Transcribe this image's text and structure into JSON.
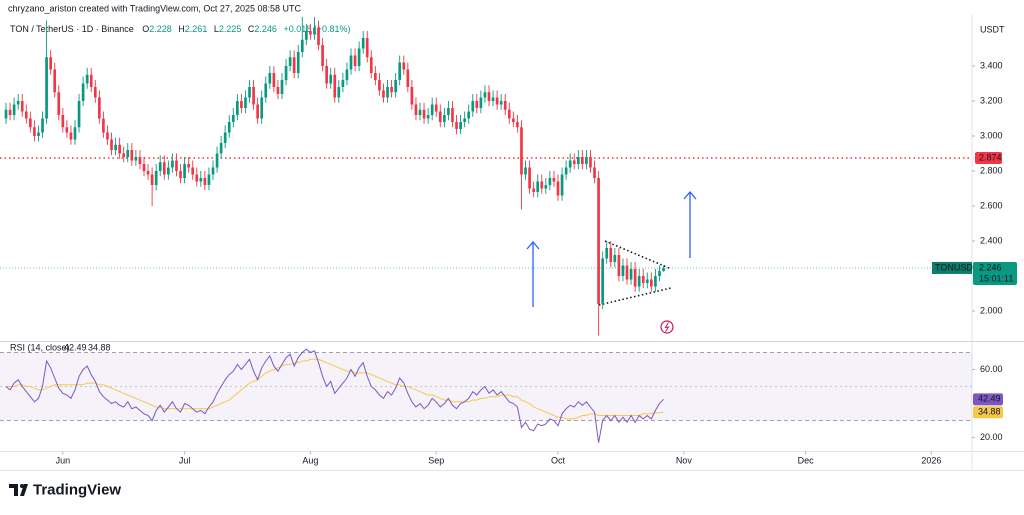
{
  "header": {
    "credit": "chryzano_ariston created with TradingView.com, Oct 27, 2025 08:58 UTC"
  },
  "footer": {
    "logo": "TradingView"
  },
  "chart_data": [
    {
      "type": "candlestick",
      "title": "TON / TetherUS · 1D · Binance",
      "ohlc_keys": [
        "O",
        "H",
        "L",
        "C"
      ],
      "change": "+0.018 (+0.81%)",
      "unit": "USDT",
      "symbol_tag": "TONUSDT",
      "countdown": "15:01:11",
      "up_color": "#089981",
      "down_color": "#f23645",
      "level": {
        "value": 2.874,
        "color": "#f23645"
      },
      "xlim": [
        0,
        238
      ],
      "xticks": [
        {
          "value": 14,
          "label": "Jun"
        },
        {
          "value": 44,
          "label": "Jul"
        },
        {
          "value": 75,
          "label": "Aug"
        },
        {
          "value": 106,
          "label": "Sep"
        },
        {
          "value": 136,
          "label": "Oct"
        },
        {
          "value": 167,
          "label": "Nov"
        },
        {
          "value": 197,
          "label": "Dec"
        },
        {
          "value": 228,
          "label": "2026"
        }
      ],
      "ylim": [
        1.83,
        3.69
      ],
      "yticks": [
        {
          "value": 2.0,
          "label": "2.000"
        },
        {
          "value": 2.4,
          "label": "2.400"
        },
        {
          "value": 2.6,
          "label": "2.600"
        },
        {
          "value": 2.8,
          "label": "2.800"
        },
        {
          "value": 3.0,
          "label": "3.000"
        },
        {
          "value": 3.2,
          "label": "3.200"
        },
        {
          "value": 3.4,
          "label": "3.400"
        }
      ],
      "open": [
        3.1,
        3.15,
        3.12,
        3.18,
        3.2,
        3.14,
        3.1,
        3.05,
        3.0,
        3.02,
        3.1,
        3.45,
        3.38,
        3.25,
        3.12,
        3.05,
        3.02,
        2.98,
        3.05,
        3.2,
        3.3,
        3.35,
        3.28,
        3.22,
        3.1,
        3.02,
        2.98,
        2.92,
        2.95,
        2.9,
        2.88,
        2.92,
        2.86,
        2.88,
        2.84,
        2.8,
        2.78,
        2.72,
        2.8,
        2.85,
        2.78,
        2.82,
        2.86,
        2.8,
        2.76,
        2.84,
        2.82,
        2.78,
        2.74,
        2.76,
        2.72,
        2.78,
        2.82,
        2.9,
        2.96,
        3.02,
        3.08,
        3.12,
        3.2,
        3.16,
        3.22,
        3.28,
        3.18,
        3.1,
        3.22,
        3.3,
        3.36,
        3.28,
        3.24,
        3.32,
        3.4,
        3.45,
        3.36,
        3.48,
        3.55,
        3.6,
        3.58,
        3.62,
        3.52,
        3.4,
        3.3,
        3.35,
        3.22,
        3.28,
        3.32,
        3.38,
        3.46,
        3.4,
        3.5,
        3.56,
        3.45,
        3.36,
        3.32,
        3.26,
        3.22,
        3.28,
        3.25,
        3.32,
        3.42,
        3.38,
        3.28,
        3.18,
        3.12,
        3.15,
        3.1,
        3.12,
        3.18,
        3.14,
        3.08,
        3.12,
        3.16,
        3.08,
        3.04,
        3.08,
        3.1,
        3.14,
        3.2,
        3.16,
        3.22,
        3.25,
        3.2,
        3.22,
        3.18,
        3.2,
        3.15,
        3.1,
        3.08,
        3.05,
        2.78,
        2.82,
        2.7,
        2.68,
        2.74,
        2.7,
        2.72,
        2.76,
        2.74,
        2.66,
        2.78,
        2.82,
        2.86,
        2.84,
        2.88,
        2.84,
        2.88,
        2.82,
        2.76,
        2.04,
        2.3,
        2.36,
        2.28,
        2.32,
        2.2,
        2.26,
        2.18,
        2.24,
        2.14,
        2.2,
        2.16,
        2.18,
        2.14,
        2.2,
        2.228
      ],
      "high": [
        3.19,
        3.19,
        3.22,
        3.24,
        3.24,
        3.18,
        3.14,
        3.09,
        3.06,
        3.14,
        3.66,
        3.49,
        3.42,
        3.29,
        3.16,
        3.09,
        3.06,
        3.09,
        3.24,
        3.34,
        3.39,
        3.39,
        3.32,
        3.26,
        3.14,
        3.06,
        3.02,
        2.99,
        2.99,
        2.94,
        2.96,
        2.96,
        2.92,
        2.92,
        2.88,
        2.84,
        2.82,
        2.84,
        2.89,
        2.89,
        2.86,
        2.9,
        2.9,
        2.84,
        2.88,
        2.88,
        2.86,
        2.82,
        2.8,
        2.8,
        2.82,
        2.86,
        2.94,
        3.0,
        3.06,
        3.12,
        3.16,
        3.24,
        3.24,
        3.26,
        3.32,
        3.32,
        3.22,
        3.26,
        3.34,
        3.4,
        3.4,
        3.32,
        3.36,
        3.44,
        3.49,
        3.49,
        3.52,
        3.68,
        3.64,
        3.64,
        3.68,
        3.66,
        3.56,
        3.44,
        3.39,
        3.39,
        3.32,
        3.36,
        3.42,
        3.5,
        3.5,
        3.54,
        3.6,
        3.6,
        3.49,
        3.4,
        3.36,
        3.3,
        3.32,
        3.32,
        3.36,
        3.46,
        3.46,
        3.42,
        3.32,
        3.22,
        3.19,
        3.19,
        3.16,
        3.22,
        3.22,
        3.18,
        3.16,
        3.2,
        3.2,
        3.12,
        3.12,
        3.14,
        3.18,
        3.24,
        3.24,
        3.26,
        3.29,
        3.29,
        3.26,
        3.26,
        3.24,
        3.24,
        3.19,
        3.14,
        3.12,
        3.09,
        2.86,
        2.86,
        2.74,
        2.78,
        2.78,
        2.76,
        2.8,
        2.8,
        2.78,
        2.82,
        2.86,
        2.9,
        2.9,
        2.92,
        2.92,
        2.92,
        2.92,
        2.86,
        2.8,
        2.34,
        2.4,
        2.4,
        2.36,
        2.36,
        2.3,
        2.3,
        2.28,
        2.28,
        2.24,
        2.24,
        2.22,
        2.22,
        2.24,
        2.26,
        2.261
      ],
      "low": [
        3.07,
        3.09,
        3.09,
        3.15,
        3.11,
        3.07,
        3.02,
        2.97,
        2.97,
        2.99,
        3.07,
        3.35,
        3.22,
        3.09,
        3.02,
        2.99,
        2.95,
        2.95,
        3.02,
        3.17,
        3.27,
        3.25,
        3.19,
        3.07,
        2.99,
        2.95,
        2.89,
        2.89,
        2.87,
        2.85,
        2.85,
        2.83,
        2.83,
        2.81,
        2.77,
        2.75,
        2.6,
        2.69,
        2.77,
        2.75,
        2.75,
        2.79,
        2.77,
        2.73,
        2.73,
        2.79,
        2.75,
        2.71,
        2.71,
        2.69,
        2.69,
        2.75,
        2.79,
        2.87,
        2.93,
        2.99,
        3.05,
        3.09,
        3.13,
        3.13,
        3.19,
        3.15,
        3.07,
        3.07,
        3.19,
        3.27,
        3.25,
        3.21,
        3.21,
        3.29,
        3.37,
        3.33,
        3.33,
        3.45,
        3.52,
        3.55,
        3.55,
        3.49,
        3.37,
        3.27,
        3.27,
        3.19,
        3.19,
        3.25,
        3.29,
        3.35,
        3.37,
        3.37,
        3.47,
        3.42,
        3.33,
        3.29,
        3.23,
        3.19,
        3.19,
        3.22,
        3.22,
        3.29,
        3.35,
        3.25,
        3.15,
        3.09,
        3.09,
        3.07,
        3.07,
        3.09,
        3.11,
        3.05,
        3.05,
        3.09,
        3.05,
        3.01,
        3.01,
        3.05,
        3.07,
        3.11,
        3.13,
        3.13,
        3.19,
        3.17,
        3.17,
        3.15,
        3.15,
        3.12,
        3.07,
        3.05,
        3.02,
        2.58,
        2.75,
        2.67,
        2.65,
        2.65,
        2.67,
        2.67,
        2.69,
        2.71,
        2.63,
        2.63,
        2.75,
        2.79,
        2.81,
        2.81,
        2.81,
        2.81,
        2.79,
        2.73,
        1.86,
        2.01,
        2.27,
        2.25,
        2.25,
        2.17,
        2.17,
        2.15,
        2.15,
        2.11,
        2.11,
        2.13,
        2.13,
        2.11,
        2.11,
        2.17,
        2.225
      ],
      "close": [
        3.15,
        3.12,
        3.18,
        3.2,
        3.14,
        3.1,
        3.05,
        3.0,
        3.02,
        3.1,
        3.45,
        3.38,
        3.25,
        3.12,
        3.05,
        3.02,
        2.98,
        3.05,
        3.2,
        3.3,
        3.35,
        3.28,
        3.22,
        3.1,
        3.02,
        2.98,
        2.92,
        2.95,
        2.9,
        2.88,
        2.92,
        2.86,
        2.88,
        2.84,
        2.8,
        2.78,
        2.72,
        2.8,
        2.85,
        2.78,
        2.82,
        2.86,
        2.8,
        2.76,
        2.84,
        2.82,
        2.78,
        2.74,
        2.76,
        2.72,
        2.78,
        2.82,
        2.9,
        2.96,
        3.02,
        3.08,
        3.12,
        3.2,
        3.16,
        3.22,
        3.28,
        3.18,
        3.1,
        3.22,
        3.3,
        3.36,
        3.28,
        3.24,
        3.32,
        3.4,
        3.45,
        3.36,
        3.48,
        3.55,
        3.6,
        3.58,
        3.62,
        3.52,
        3.4,
        3.3,
        3.35,
        3.22,
        3.28,
        3.32,
        3.38,
        3.46,
        3.4,
        3.5,
        3.56,
        3.45,
        3.36,
        3.32,
        3.26,
        3.22,
        3.28,
        3.25,
        3.32,
        3.42,
        3.38,
        3.28,
        3.18,
        3.12,
        3.15,
        3.1,
        3.12,
        3.18,
        3.14,
        3.08,
        3.12,
        3.16,
        3.08,
        3.04,
        3.08,
        3.1,
        3.14,
        3.2,
        3.16,
        3.22,
        3.25,
        3.2,
        3.22,
        3.18,
        3.2,
        3.15,
        3.1,
        3.08,
        3.05,
        2.78,
        2.82,
        2.7,
        2.68,
        2.74,
        2.7,
        2.72,
        2.76,
        2.74,
        2.66,
        2.78,
        2.82,
        2.86,
        2.84,
        2.88,
        2.84,
        2.88,
        2.82,
        2.76,
        2.04,
        2.3,
        2.36,
        2.28,
        2.32,
        2.2,
        2.26,
        2.18,
        2.24,
        2.14,
        2.2,
        2.16,
        2.18,
        2.14,
        2.2,
        2.228,
        2.246
      ]
    },
    {
      "type": "line",
      "title": "RSI (14, close)",
      "ylim": [
        12.4,
        75.3
      ],
      "yticks": [
        {
          "value": 20,
          "label": "20.00"
        },
        {
          "value": 60,
          "label": "60.00"
        }
      ],
      "bands": [
        70,
        50,
        30
      ],
      "series": [
        {
          "color": "#7e57c2",
          "values": [
            50,
            48,
            52,
            54,
            50,
            47,
            44,
            41,
            43,
            50,
            65,
            61,
            55,
            49,
            46,
            45,
            43,
            48,
            56,
            60,
            62,
            57,
            53,
            47,
            44,
            42,
            40,
            41,
            39,
            38,
            41,
            37,
            38,
            36,
            34,
            33,
            30,
            36,
            39,
            35,
            38,
            41,
            37,
            35,
            40,
            39,
            37,
            35,
            36,
            34,
            38,
            41,
            46,
            50,
            54,
            57,
            59,
            63,
            60,
            63,
            66,
            59,
            54,
            61,
            65,
            68,
            62,
            59,
            63,
            67,
            69,
            62,
            67,
            70,
            72,
            70,
            71,
            64,
            56,
            50,
            53,
            46,
            49,
            52,
            55,
            60,
            56,
            61,
            64,
            56,
            50,
            48,
            45,
            43,
            47,
            45,
            49,
            55,
            52,
            46,
            41,
            38,
            40,
            37,
            39,
            43,
            41,
            38,
            40,
            43,
            39,
            37,
            40,
            41,
            43,
            47,
            45,
            48,
            50,
            46,
            48,
            45,
            47,
            44,
            41,
            40,
            38,
            26,
            29,
            25,
            24,
            28,
            27,
            28,
            31,
            30,
            27,
            34,
            37,
            39,
            38,
            41,
            39,
            41,
            38,
            35,
            17,
            30,
            33,
            30,
            33,
            29,
            32,
            29,
            33,
            29,
            33,
            31,
            33,
            31,
            36,
            40,
            42.49
          ]
        },
        {
          "color": "#f7c948",
          "values": [
            50,
            50,
            50,
            51,
            51,
            50,
            50,
            49,
            48,
            48,
            49,
            50,
            51,
            51,
            51,
            51,
            51,
            51,
            51,
            51,
            52,
            52,
            52,
            51,
            51,
            50,
            49,
            48,
            47,
            46,
            45,
            44,
            43,
            42,
            41,
            40,
            39,
            38,
            38,
            37,
            37,
            37,
            37,
            37,
            37,
            37,
            37,
            37,
            37,
            37,
            37,
            38,
            39,
            40,
            41,
            42,
            44,
            46,
            48,
            50,
            52,
            53,
            54,
            56,
            58,
            59,
            60,
            61,
            62,
            63,
            63,
            64,
            64,
            65,
            65,
            66,
            66,
            66,
            65,
            64,
            63,
            62,
            61,
            60,
            59,
            59,
            58,
            58,
            58,
            58,
            57,
            56,
            55,
            54,
            53,
            52,
            51,
            51,
            50,
            50,
            49,
            48,
            47,
            46,
            45,
            45,
            44,
            43,
            42,
            42,
            41,
            41,
            41,
            41,
            41,
            42,
            42,
            43,
            43,
            44,
            44,
            44,
            45,
            45,
            45,
            44,
            44,
            42,
            41,
            40,
            38,
            37,
            36,
            35,
            34,
            33,
            32,
            32,
            31,
            31,
            31,
            32,
            33,
            33,
            34,
            34,
            33,
            33,
            33,
            33,
            33,
            33,
            33,
            33,
            33,
            33,
            33,
            34,
            34,
            34,
            34.5,
            34.7,
            34.88
          ]
        }
      ]
    }
  ]
}
